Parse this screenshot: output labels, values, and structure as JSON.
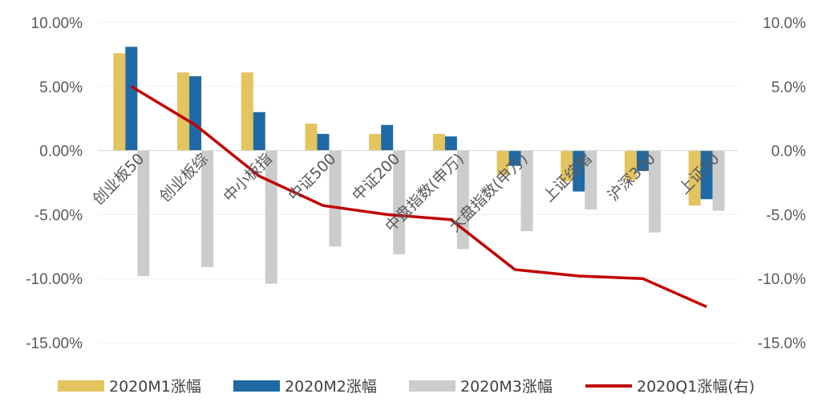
{
  "chart_data": {
    "type": "bar",
    "categories": [
      "创业板50",
      "创业板综",
      "中小板指",
      "中证500",
      "中证200",
      "中盘指数(申万)",
      "大盘指数(申万)",
      "上证综指",
      "沪深300",
      "上证50"
    ],
    "series": [
      {
        "name": "2020M1涨幅",
        "type": "bar",
        "axis": "left",
        "color": "#E3C45F",
        "values": [
          7.6,
          6.1,
          6.1,
          2.1,
          1.3,
          1.3,
          -1.9,
          -2.4,
          -2.3,
          -4.3
        ]
      },
      {
        "name": "2020M2涨幅",
        "type": "bar",
        "axis": "left",
        "color": "#1F6AA5",
        "values": [
          8.1,
          5.8,
          3.0,
          1.3,
          2.0,
          1.1,
          -1.2,
          -3.2,
          -1.6,
          -3.8
        ]
      },
      {
        "name": "2020M3涨幅",
        "type": "bar",
        "axis": "left",
        "color": "#CCCCCC",
        "values": [
          -9.8,
          -9.1,
          -10.4,
          -7.5,
          -8.1,
          -7.7,
          -6.3,
          -4.6,
          -6.4,
          -4.7
        ]
      },
      {
        "name": "2020Q1涨幅(右)",
        "type": "line",
        "axis": "right",
        "color": "#C00000",
        "values": [
          5.0,
          2.0,
          -2.0,
          -4.3,
          -5.0,
          -5.4,
          -9.3,
          -9.8,
          -10.0,
          -12.2
        ]
      }
    ],
    "y_left": {
      "min": -15,
      "max": 10,
      "ticks": [
        "10.00%",
        "5.00%",
        "0.00%",
        "-5.00%",
        "-10.00%",
        "-15.00%"
      ]
    },
    "y_right": {
      "min": -15,
      "max": 10,
      "ticks": [
        "10.0%",
        "5.0%",
        "0.0%",
        "-5.0%",
        "-10.0%",
        "-15.0%"
      ]
    },
    "grid": true,
    "legend_position": "bottom"
  }
}
